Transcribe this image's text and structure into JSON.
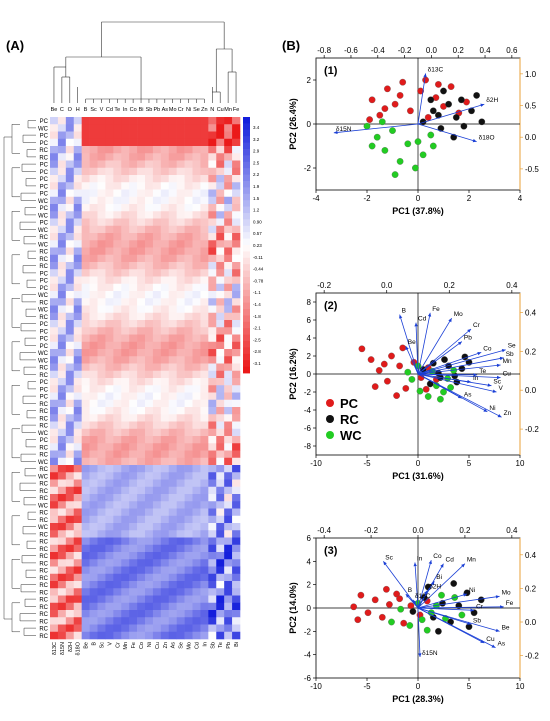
{
  "panel_a_label": "(A)",
  "panel_b_label": "(B)",
  "chart_data": [
    {
      "type": "heatmap",
      "columns_top": [
        "Be",
        "C",
        "O",
        "H",
        "B",
        "Sc",
        "V",
        "Cd",
        "Te",
        "In",
        "Co",
        "Bi",
        "Sb",
        "Pb",
        "As",
        "Mo",
        "Cr",
        "Ni",
        "Se",
        "Zn",
        "N",
        "Cu",
        "Mn",
        "Fe"
      ],
      "columns_bottom": [
        "δ13C",
        "δ15N",
        "δ2H",
        "δ18O",
        "Be",
        "B",
        "Sc",
        "V",
        "Cr",
        "Mn",
        "Fe",
        "Co",
        "Ni",
        "Cu",
        "Zn",
        "As",
        "Se",
        "Mo",
        "Cd",
        "In",
        "Sb",
        "Te",
        "Pb",
        "Bi"
      ],
      "rows": [
        "PC",
        "WC",
        "PC",
        "PC",
        "RC",
        "RC",
        "PC",
        "PC",
        "PC",
        "PC",
        "PC",
        "WC",
        "PC",
        "WC",
        "PC",
        "WC",
        "RC",
        "WC",
        "RC",
        "RC",
        "RC",
        "PC",
        "PC",
        "PC",
        "WC",
        "RC",
        "WC",
        "RC",
        "PC",
        "PC",
        "PC",
        "PC",
        "WC",
        "WC",
        "RC",
        "RC",
        "PC",
        "PC",
        "PC",
        "RC",
        "RC",
        "RC",
        "RC",
        "WC",
        "PC",
        "RC",
        "RC",
        "WC",
        "RC",
        "WC",
        "RC",
        "RC",
        "RC",
        "WC",
        "RC",
        "RC",
        "WC",
        "RC",
        "RC",
        "RC",
        "RC",
        "RC",
        "RC",
        "RC",
        "RC",
        "RC",
        "RC",
        "RC",
        "RC",
        "RC",
        "RC",
        "RC"
      ],
      "colorbar_ticks": [
        "3.4",
        "3.2",
        "2.9",
        "2.5",
        "2.2",
        "1.9",
        "1.5",
        "1.2",
        "0.90",
        "0.57",
        "0.23",
        "-0.11",
        "-0.44",
        "-0.78",
        "-1.1",
        "-1.4",
        "-1.8",
        "-2.1",
        "-2.5",
        "-2.8",
        "-3.1"
      ],
      "colorbar_range": [
        -3.1,
        3.4
      ]
    },
    {
      "type": "scatter",
      "panel": "(1)",
      "xlabel": "PC1 (37.8%)",
      "ylabel": "PC2 (26.4%)",
      "xlim": [
        -4,
        4
      ],
      "ylim": [
        -3,
        3
      ],
      "xticks": [
        "-4",
        "-2",
        "0",
        "2",
        "4"
      ],
      "yticks": [
        "-2",
        "0",
        "2"
      ],
      "top_ticks": [
        "-0.8",
        "-0.6",
        "-0.4",
        "-0.2",
        "0.0",
        "0.2",
        "0.4",
        "0.6"
      ],
      "right_ticks": [
        "1.0",
        "0.5",
        "0.0",
        "-0.5"
      ],
      "loadings": [
        {
          "label": "δ13C",
          "x": 0.3,
          "y": 2.3
        },
        {
          "label": "δ2H",
          "x": 2.6,
          "y": 0.9
        },
        {
          "label": "δ15N",
          "x": -3.3,
          "y": -0.4
        },
        {
          "label": "δ18O",
          "x": 2.3,
          "y": -0.8
        }
      ],
      "series": [
        {
          "name": "PC",
          "color": "#e01b1b",
          "points": [
            [
              -1.8,
              1.1
            ],
            [
              -1.5,
              0.4
            ],
            [
              -1.2,
              1.6
            ],
            [
              -0.9,
              0.9
            ],
            [
              -0.6,
              1.9
            ],
            [
              -0.3,
              0.6
            ],
            [
              0.1,
              1.5
            ],
            [
              0.4,
              0.3
            ],
            [
              0.7,
              1.2
            ],
            [
              1.0,
              0.8
            ],
            [
              1.3,
              1.7
            ],
            [
              1.6,
              0.5
            ],
            [
              -1.9,
              0.2
            ],
            [
              -0.7,
              1.3
            ],
            [
              0.3,
              2.0
            ],
            [
              1.9,
              1.0
            ],
            [
              -1.3,
              0.7
            ],
            [
              0.8,
              1.8
            ]
          ]
        },
        {
          "name": "RC",
          "color": "#111111",
          "points": [
            [
              0.2,
              0.1
            ],
            [
              0.6,
              0.6
            ],
            [
              0.9,
              -0.2
            ],
            [
              1.2,
              0.9
            ],
            [
              1.5,
              0.3
            ],
            [
              1.8,
              -0.1
            ],
            [
              2.1,
              0.6
            ],
            [
              2.3,
              1.3
            ],
            [
              0.5,
              1.1
            ],
            [
              1.0,
              1.5
            ],
            [
              1.4,
              -0.6
            ],
            [
              2.5,
              0.1
            ],
            [
              1.7,
              1.1
            ],
            [
              0.8,
              0.4
            ]
          ]
        },
        {
          "name": "WC",
          "color": "#22cc22",
          "points": [
            [
              -1.6,
              -0.6
            ],
            [
              -1.3,
              -1.2
            ],
            [
              -1.0,
              -0.3
            ],
            [
              -0.7,
              -1.7
            ],
            [
              -0.4,
              -0.9
            ],
            [
              -0.1,
              -2.0
            ],
            [
              0.2,
              -1.4
            ],
            [
              0.5,
              -0.5
            ],
            [
              -1.8,
              -1.0
            ],
            [
              -0.9,
              -2.3
            ],
            [
              0.6,
              -1.0
            ],
            [
              -1.4,
              0.1
            ],
            [
              0.0,
              -0.8
            ],
            [
              -2.0,
              -0.1
            ]
          ]
        }
      ]
    },
    {
      "type": "scatter",
      "panel": "(2)",
      "xlabel": "PC1 (31.6%)",
      "ylabel": "PC2 (16.2%)",
      "xlim": [
        -10,
        10
      ],
      "ylim": [
        -9,
        9
      ],
      "xticks": [
        "-10",
        "-5",
        "0",
        "5",
        "10"
      ],
      "yticks": [
        "-8",
        "-6",
        "-4",
        "-2",
        "0",
        "2",
        "4",
        "6",
        "8"
      ],
      "top_ticks": [
        "-0.2",
        "0.0",
        "0.2",
        "0.4"
      ],
      "right_ticks": [
        "0.4",
        "0.2",
        "0.0",
        "-0.2"
      ],
      "legend": [
        "PC",
        "RC",
        "WC"
      ],
      "loadings": [
        {
          "label": "B",
          "x": -1.8,
          "y": 6.6
        },
        {
          "label": "Cd",
          "x": -0.2,
          "y": 5.7
        },
        {
          "label": "Fe",
          "x": 1.2,
          "y": 6.8
        },
        {
          "label": "Mo",
          "x": 3.3,
          "y": 6.2
        },
        {
          "label": "Cr",
          "x": 5.2,
          "y": 5.0
        },
        {
          "label": "Pb",
          "x": 4.3,
          "y": 3.6
        },
        {
          "label": "Be",
          "x": -1.2,
          "y": 3.1
        },
        {
          "label": "Co",
          "x": 6.2,
          "y": 2.4
        },
        {
          "label": "Se",
          "x": 8.6,
          "y": 2.7
        },
        {
          "label": "Sb",
          "x": 8.4,
          "y": 1.8
        },
        {
          "label": "Mn",
          "x": 8.1,
          "y": 1.0
        },
        {
          "label": "Te",
          "x": 5.8,
          "y": -0.1
        },
        {
          "label": "Cu",
          "x": 8.1,
          "y": -0.4
        },
        {
          "label": "In",
          "x": 5.2,
          "y": -0.9
        },
        {
          "label": "Sc",
          "x": 7.2,
          "y": -1.3
        },
        {
          "label": "V",
          "x": 7.7,
          "y": -2.0
        },
        {
          "label": "As",
          "x": 4.3,
          "y": -2.7
        },
        {
          "label": "Ni",
          "x": 6.8,
          "y": -4.2
        },
        {
          "label": "Zn",
          "x": 8.2,
          "y": -4.8
        }
      ],
      "series": [
        {
          "name": "PC",
          "color": "#e01b1b",
          "points": [
            [
              -5.5,
              2.8
            ],
            [
              -4.6,
              1.6
            ],
            [
              -3.8,
              0.4
            ],
            [
              -3.0,
              -0.8
            ],
            [
              -2.6,
              2.0
            ],
            [
              -1.8,
              0.9
            ],
            [
              -1.2,
              -1.6
            ],
            [
              -0.4,
              1.3
            ],
            [
              0.3,
              -0.4
            ],
            [
              1.0,
              0.7
            ],
            [
              -4.2,
              -1.4
            ],
            [
              -2.1,
              -2.4
            ],
            [
              -3.3,
              1.1
            ],
            [
              0.8,
              -1.7
            ],
            [
              1.8,
              -0.6
            ],
            [
              -1.5,
              2.9
            ]
          ]
        },
        {
          "name": "RC",
          "color": "#111111",
          "points": [
            [
              0.5,
              0.5
            ],
            [
              1.5,
              1.2
            ],
            [
              2.2,
              -0.4
            ],
            [
              3.0,
              0.9
            ],
            [
              3.6,
              -0.2
            ],
            [
              4.3,
              0.6
            ],
            [
              5.0,
              1.3
            ],
            [
              1.2,
              -1.1
            ],
            [
              2.6,
              1.6
            ],
            [
              3.8,
              -0.9
            ],
            [
              4.6,
              1.9
            ],
            [
              2.0,
              0.1
            ]
          ]
        },
        {
          "name": "WC",
          "color": "#22cc22",
          "points": [
            [
              -0.6,
              -0.6
            ],
            [
              0.2,
              -1.9
            ],
            [
              1.0,
              -2.5
            ],
            [
              1.8,
              -1.3
            ],
            [
              2.5,
              -2.0
            ],
            [
              3.2,
              -1.5
            ],
            [
              0.0,
              0.9
            ],
            [
              1.4,
              0.3
            ],
            [
              2.9,
              -0.5
            ],
            [
              -1.0,
              0.2
            ],
            [
              3.5,
              0.4
            ],
            [
              2.2,
              -2.8
            ]
          ]
        }
      ]
    },
    {
      "type": "scatter",
      "panel": "(3)",
      "xlabel": "PC1 (28.3%)",
      "ylabel": "PC2 (14.0%)",
      "xlim": [
        -10,
        10
      ],
      "ylim": [
        -6,
        6
      ],
      "xticks": [
        "-10",
        "-5",
        "0",
        "5",
        "10"
      ],
      "yticks": [
        "-6",
        "-4",
        "-2",
        "0",
        "2",
        "4",
        "6"
      ],
      "top_ticks": [
        "-0.4",
        "-0.2",
        "0.0",
        "0.2",
        "0.4"
      ],
      "right_ticks": [
        "0.4",
        "0.2",
        "0.0",
        "-0.2"
      ],
      "loadings": [
        {
          "label": "Sc",
          "x": -3.4,
          "y": 4.0
        },
        {
          "label": "In",
          "x": -0.3,
          "y": 3.9
        },
        {
          "label": "Co",
          "x": 1.3,
          "y": 4.1
        },
        {
          "label": "Cd",
          "x": 2.5,
          "y": 3.8
        },
        {
          "label": "Mn",
          "x": 4.6,
          "y": 3.8
        },
        {
          "label": "Bi",
          "x": 1.6,
          "y": 2.3
        },
        {
          "label": "δ2H",
          "x": 0.9,
          "y": 1.5
        },
        {
          "label": "B",
          "x": -1.2,
          "y": 1.2
        },
        {
          "label": "δ13C",
          "x": -0.5,
          "y": 0.7
        },
        {
          "label": "Ni",
          "x": 4.8,
          "y": 1.2
        },
        {
          "label": "Mo",
          "x": 8.0,
          "y": 1.0
        },
        {
          "label": "Fe",
          "x": 8.4,
          "y": 0.1
        },
        {
          "label": "Cr",
          "x": 5.5,
          "y": -0.2
        },
        {
          "label": "Sb",
          "x": 5.2,
          "y": -1.4
        },
        {
          "label": "Be",
          "x": 8.0,
          "y": -2.0
        },
        {
          "label": "Cu",
          "x": 6.5,
          "y": -3.0
        },
        {
          "label": "As",
          "x": 7.6,
          "y": -3.4
        },
        {
          "label": "δ15N",
          "x": 0.2,
          "y": -4.2
        }
      ],
      "series": [
        {
          "name": "PC",
          "color": "#e01b1b",
          "points": [
            [
              -6.3,
              0.1
            ],
            [
              -5.6,
              1.1
            ],
            [
              -4.9,
              -0.4
            ],
            [
              -4.2,
              0.7
            ],
            [
              -3.5,
              -0.8
            ],
            [
              -2.8,
              0.3
            ],
            [
              -2.1,
              1.2
            ],
            [
              -1.4,
              -1.3
            ],
            [
              -0.7,
              0.2
            ],
            [
              -5.9,
              -1.0
            ],
            [
              -3.1,
              1.6
            ],
            [
              0.2,
              -0.6
            ],
            [
              -1.8,
              0.8
            ],
            [
              0.9,
              0.6
            ]
          ]
        },
        {
          "name": "RC",
          "color": "#111111",
          "points": [
            [
              -0.5,
              -0.3
            ],
            [
              0.6,
              0.9
            ],
            [
              1.5,
              -0.8
            ],
            [
              2.4,
              0.4
            ],
            [
              3.2,
              -1.2
            ],
            [
              4.0,
              0.2
            ],
            [
              4.8,
              1.3
            ],
            [
              5.5,
              -0.4
            ],
            [
              6.2,
              0.7
            ],
            [
              1.0,
              1.8
            ],
            [
              3.5,
              2.1
            ],
            [
              2.0,
              -2.0
            ],
            [
              5.0,
              -1.6
            ]
          ]
        },
        {
          "name": "WC",
          "color": "#22cc22",
          "points": [
            [
              -1.7,
              -0.1
            ],
            [
              -0.8,
              -1.5
            ],
            [
              0.0,
              0.4
            ],
            [
              0.9,
              -1.9
            ],
            [
              1.8,
              0.2
            ],
            [
              2.7,
              -0.9
            ],
            [
              3.6,
              0.9
            ],
            [
              -2.6,
              -1.2
            ],
            [
              1.3,
              -0.4
            ],
            [
              2.3,
              1.1
            ],
            [
              4.3,
              -0.6
            ],
            [
              0.4,
              -1.0
            ]
          ]
        }
      ]
    }
  ]
}
